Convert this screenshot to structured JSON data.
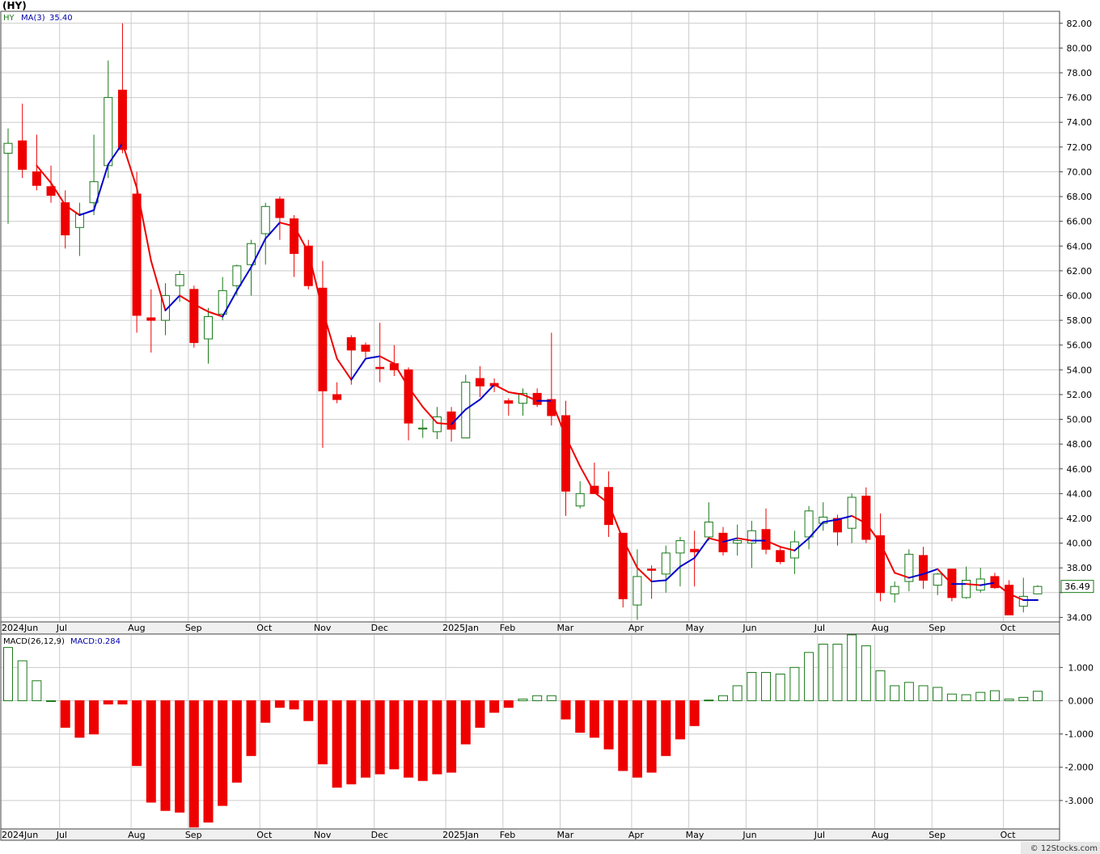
{
  "symbol_title": "(HY)",
  "footer": "© 12Stocks.com",
  "colors": {
    "up": "#1a7a1a",
    "down": "#ee0000",
    "ma_up": "#0000cc",
    "ma_down": "#ee0000",
    "grid": "#cccccc",
    "frame": "#444444",
    "legend_text": "#0000aa",
    "price_tag_border": "#1a7a1a"
  },
  "chart_data": [
    {
      "type": "candlestick",
      "legend": {
        "symbol": "HY",
        "indicator": "MA(3)",
        "value": "35.40"
      },
      "last_price_label": "36.49",
      "ylim": [
        33.7,
        82.9
      ],
      "y_ticks": [
        34,
        36,
        38,
        40,
        42,
        44,
        46,
        48,
        50,
        52,
        54,
        56,
        58,
        60,
        62,
        64,
        66,
        68,
        70,
        72,
        74,
        76,
        78,
        80,
        82
      ],
      "y_tick_labels": [
        "34.00",
        "",
        "38.00",
        "40.00",
        "42.00",
        "44.00",
        "46.00",
        "48.00",
        "50.00",
        "52.00",
        "54.00",
        "56.00",
        "58.00",
        "60.00",
        "62.00",
        "64.00",
        "66.00",
        "68.00",
        "70.00",
        "72.00",
        "74.00",
        "76.00",
        "78.00",
        "80.00",
        "82.00"
      ],
      "x_axis": [
        {
          "label": "2024Jun",
          "bar": 0
        },
        {
          "label": "Jul",
          "bar": 4
        },
        {
          "label": "Aug",
          "bar": 9
        },
        {
          "label": "Sep",
          "bar": 13
        },
        {
          "label": "Oct",
          "bar": 18
        },
        {
          "label": "Nov",
          "bar": 22
        },
        {
          "label": "Dec",
          "bar": 26
        },
        {
          "label": "2025Jan",
          "bar": 31
        },
        {
          "label": "Feb",
          "bar": 35
        },
        {
          "label": "Mar",
          "bar": 39
        },
        {
          "label": "Apr",
          "bar": 44
        },
        {
          "label": "May",
          "bar": 48
        },
        {
          "label": "Jun",
          "bar": 52
        },
        {
          "label": "Jul",
          "bar": 57
        },
        {
          "label": "Aug",
          "bar": 61
        },
        {
          "label": "Sep",
          "bar": 65
        },
        {
          "label": "Oct",
          "bar": 70
        }
      ],
      "bars": [
        {
          "o": 71.5,
          "h": 73.5,
          "l": 65.8,
          "c": 72.3
        },
        {
          "o": 72.5,
          "h": 75.5,
          "l": 69.5,
          "c": 70.2
        },
        {
          "o": 70.0,
          "h": 73.0,
          "l": 68.5,
          "c": 68.9
        },
        {
          "o": 68.8,
          "h": 70.5,
          "l": 67.5,
          "c": 68.1
        },
        {
          "o": 67.5,
          "h": 68.5,
          "l": 63.8,
          "c": 64.9
        },
        {
          "o": 65.5,
          "h": 67.5,
          "l": 63.2,
          "c": 66.6
        },
        {
          "o": 67.5,
          "h": 73.0,
          "l": 66.5,
          "c": 69.2
        },
        {
          "o": 70.5,
          "h": 79.0,
          "l": 69.5,
          "c": 76.0
        },
        {
          "o": 76.6,
          "h": 82.0,
          "l": 71.5,
          "c": 71.8
        },
        {
          "o": 68.2,
          "h": 70.0,
          "l": 57.0,
          "c": 58.4
        },
        {
          "o": 58.2,
          "h": 60.5,
          "l": 55.4,
          "c": 58.0
        },
        {
          "o": 58.0,
          "h": 61.0,
          "l": 56.8,
          "c": 60.0
        },
        {
          "o": 60.8,
          "h": 62.0,
          "l": 59.5,
          "c": 61.7
        },
        {
          "o": 60.5,
          "h": 60.8,
          "l": 55.8,
          "c": 56.2
        },
        {
          "o": 56.5,
          "h": 59.0,
          "l": 54.5,
          "c": 58.3
        },
        {
          "o": 58.5,
          "h": 61.5,
          "l": 58.0,
          "c": 60.4
        },
        {
          "o": 60.8,
          "h": 62.5,
          "l": 60.0,
          "c": 62.4
        },
        {
          "o": 62.5,
          "h": 64.5,
          "l": 60.0,
          "c": 64.2
        },
        {
          "o": 65.0,
          "h": 67.5,
          "l": 62.5,
          "c": 67.2
        },
        {
          "o": 67.8,
          "h": 68.0,
          "l": 64.5,
          "c": 66.3
        },
        {
          "o": 66.2,
          "h": 66.5,
          "l": 61.5,
          "c": 63.4
        },
        {
          "o": 64.0,
          "h": 64.5,
          "l": 60.5,
          "c": 60.8
        },
        {
          "o": 60.6,
          "h": 62.8,
          "l": 47.7,
          "c": 52.3
        },
        {
          "o": 52.0,
          "h": 53.0,
          "l": 51.3,
          "c": 51.6
        },
        {
          "o": 56.6,
          "h": 56.8,
          "l": 52.8,
          "c": 55.6
        },
        {
          "o": 56.0,
          "h": 56.2,
          "l": 55.0,
          "c": 55.5
        },
        {
          "o": 54.2,
          "h": 57.8,
          "l": 53.0,
          "c": 54.1
        },
        {
          "o": 54.5,
          "h": 56.0,
          "l": 53.5,
          "c": 54.0
        },
        {
          "o": 54.0,
          "h": 54.2,
          "l": 48.3,
          "c": 49.7
        },
        {
          "o": 49.3,
          "h": 50.0,
          "l": 48.5,
          "c": 49.3
        },
        {
          "o": 49.0,
          "h": 51.0,
          "l": 48.4,
          "c": 50.2
        },
        {
          "o": 50.6,
          "h": 51.0,
          "l": 48.2,
          "c": 49.2
        },
        {
          "o": 48.5,
          "h": 53.6,
          "l": 48.5,
          "c": 53.0
        },
        {
          "o": 53.3,
          "h": 54.3,
          "l": 51.8,
          "c": 52.7
        },
        {
          "o": 52.9,
          "h": 53.3,
          "l": 52.2,
          "c": 52.7
        },
        {
          "o": 51.5,
          "h": 51.7,
          "l": 50.3,
          "c": 51.3
        },
        {
          "o": 51.3,
          "h": 52.5,
          "l": 50.3,
          "c": 52.1
        },
        {
          "o": 52.1,
          "h": 52.5,
          "l": 51.0,
          "c": 51.2
        },
        {
          "o": 51.6,
          "h": 57.0,
          "l": 49.5,
          "c": 50.3
        },
        {
          "o": 50.3,
          "h": 51.5,
          "l": 42.2,
          "c": 44.2
        },
        {
          "o": 43.0,
          "h": 45.0,
          "l": 42.8,
          "c": 44.0
        },
        {
          "o": 44.6,
          "h": 46.5,
          "l": 44.0,
          "c": 44.0
        },
        {
          "o": 44.5,
          "h": 45.8,
          "l": 40.5,
          "c": 41.5
        },
        {
          "o": 40.8,
          "h": 40.8,
          "l": 34.8,
          "c": 35.5
        },
        {
          "o": 35.0,
          "h": 39.5,
          "l": 33.8,
          "c": 37.3
        },
        {
          "o": 37.9,
          "h": 38.2,
          "l": 35.5,
          "c": 37.8
        },
        {
          "o": 37.5,
          "h": 39.8,
          "l": 36.0,
          "c": 39.2
        },
        {
          "o": 39.2,
          "h": 40.5,
          "l": 36.5,
          "c": 40.2
        },
        {
          "o": 39.5,
          "h": 41.0,
          "l": 36.5,
          "c": 39.3
        },
        {
          "o": 40.5,
          "h": 43.3,
          "l": 40.2,
          "c": 41.7
        },
        {
          "o": 40.8,
          "h": 41.3,
          "l": 39.0,
          "c": 39.3
        },
        {
          "o": 40.0,
          "h": 41.5,
          "l": 39.0,
          "c": 40.2
        },
        {
          "o": 40.0,
          "h": 41.8,
          "l": 38.0,
          "c": 41.0
        },
        {
          "o": 41.1,
          "h": 42.8,
          "l": 39.1,
          "c": 39.5
        },
        {
          "o": 39.4,
          "h": 39.7,
          "l": 38.3,
          "c": 38.5
        },
        {
          "o": 38.8,
          "h": 41.0,
          "l": 37.5,
          "c": 40.1
        },
        {
          "o": 40.5,
          "h": 43.0,
          "l": 39.5,
          "c": 42.6
        },
        {
          "o": 41.6,
          "h": 43.3,
          "l": 41.0,
          "c": 42.1
        },
        {
          "o": 42.0,
          "h": 42.3,
          "l": 39.8,
          "c": 40.9
        },
        {
          "o": 41.2,
          "h": 44.0,
          "l": 40.0,
          "c": 43.7
        },
        {
          "o": 43.8,
          "h": 44.5,
          "l": 40.0,
          "c": 40.3
        },
        {
          "o": 40.6,
          "h": 42.4,
          "l": 35.3,
          "c": 36.0
        },
        {
          "o": 35.9,
          "h": 36.9,
          "l": 35.2,
          "c": 36.5
        },
        {
          "o": 36.9,
          "h": 39.5,
          "l": 36.1,
          "c": 39.1
        },
        {
          "o": 39.0,
          "h": 39.7,
          "l": 36.3,
          "c": 37.0
        },
        {
          "o": 36.6,
          "h": 37.6,
          "l": 35.8,
          "c": 37.5
        },
        {
          "o": 37.9,
          "h": 37.9,
          "l": 35.3,
          "c": 35.6
        },
        {
          "o": 35.6,
          "h": 38.1,
          "l": 35.5,
          "c": 37.0
        },
        {
          "o": 36.2,
          "h": 38.0,
          "l": 36.0,
          "c": 37.1
        },
        {
          "o": 37.3,
          "h": 37.6,
          "l": 36.3,
          "c": 36.4
        },
        {
          "o": 36.6,
          "h": 37.0,
          "l": 34.2,
          "c": 34.2
        },
        {
          "o": 34.9,
          "h": 37.2,
          "l": 34.4,
          "c": 35.7
        },
        {
          "o": 35.9,
          "h": 36.6,
          "l": 35.9,
          "c": 36.5
        }
      ],
      "ma": [
        null,
        null,
        70.5,
        69.1,
        67.3,
        66.5,
        66.9,
        70.6,
        72.3,
        68.7,
        62.8,
        58.8,
        60.0,
        59.3,
        58.7,
        58.3,
        60.4,
        62.3,
        64.6,
        65.9,
        65.6,
        63.5,
        58.8,
        54.9,
        53.2,
        54.9,
        55.1,
        54.5,
        52.6,
        51.0,
        49.7,
        49.6,
        50.8,
        51.6,
        52.8,
        52.2,
        52.0,
        51.5,
        51.5,
        48.6,
        46.2,
        44.1,
        43.2,
        40.3,
        38.0,
        36.9,
        37.0,
        38.1,
        38.8,
        40.4,
        40.1,
        40.4,
        40.2,
        40.2,
        39.7,
        39.4,
        40.4,
        41.7,
        41.9,
        42.2,
        41.6,
        40.0,
        37.6,
        37.2,
        37.5,
        37.9,
        36.7,
        36.7,
        36.6,
        36.8,
        35.9,
        35.4,
        35.4
      ],
      "macd": {
        "label": "MACD(26,12,9)",
        "value_label": "MACD:0.284",
        "ylim": [
          -3.83,
          1.98
        ],
        "y_ticks": [
          1.0,
          0.0,
          -1.0,
          -2.0,
          -3.0
        ],
        "y_tick_labels": [
          "1.000",
          "0.000",
          "-1.000",
          "-2.000",
          "-3.000"
        ],
        "values": [
          1.6,
          1.2,
          0.6,
          0.0,
          -0.8,
          -1.1,
          -1.0,
          -0.1,
          -0.1,
          -1.95,
          -3.05,
          -3.3,
          -3.35,
          -3.8,
          -3.65,
          -3.15,
          -2.45,
          -1.65,
          -0.65,
          -0.2,
          -0.25,
          -0.6,
          -1.9,
          -2.6,
          -2.5,
          -2.3,
          -2.2,
          -2.05,
          -2.3,
          -2.4,
          -2.2,
          -2.15,
          -1.3,
          -0.8,
          -0.35,
          -0.2,
          0.05,
          0.15,
          0.15,
          -0.55,
          -0.95,
          -1.1,
          -1.45,
          -2.1,
          -2.3,
          -2.15,
          -1.65,
          -1.15,
          -0.75,
          0.02,
          0.15,
          0.45,
          0.85,
          0.85,
          0.8,
          1.0,
          1.45,
          1.7,
          1.7,
          1.98,
          1.65,
          0.9,
          0.45,
          0.55,
          0.45,
          0.4,
          0.2,
          0.18,
          0.25,
          0.3,
          0.05,
          0.1,
          0.284
        ]
      }
    }
  ]
}
